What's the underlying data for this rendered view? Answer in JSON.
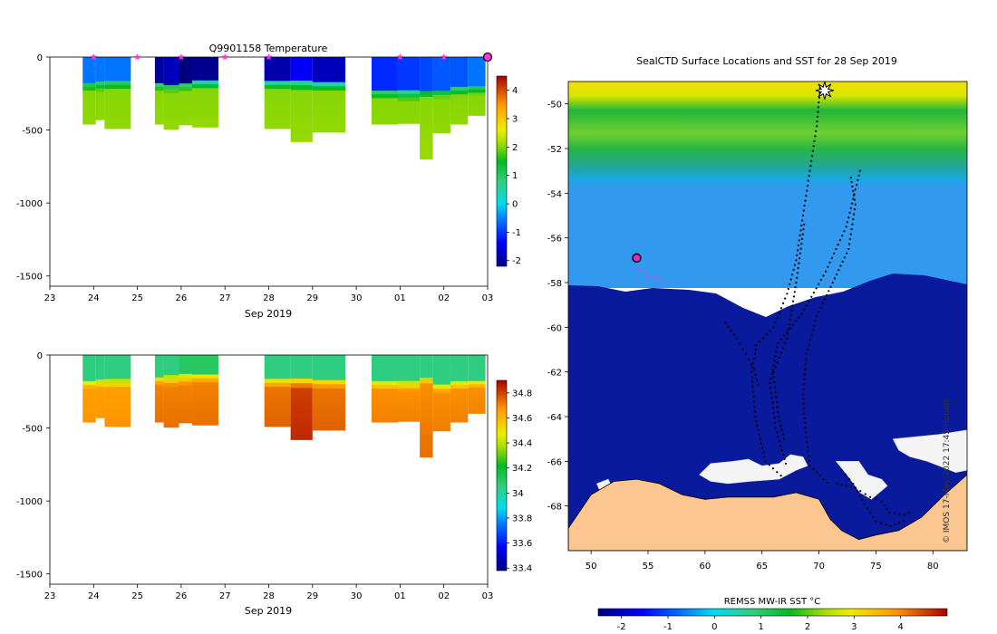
{
  "chart_data": [
    {
      "type": "heatmap",
      "id": "temperature-section",
      "title": "Q9901158  Temperature",
      "xlabel": "Sep 2019",
      "ylabel": "",
      "x_ticks": [
        "23",
        "24",
        "25",
        "26",
        "27",
        "28",
        "29",
        "30",
        "01",
        "02",
        "03"
      ],
      "x_range_days": [
        0,
        10
      ],
      "y_ticks": [
        0,
        -500,
        -1000,
        -1500
      ],
      "y_range": [
        -1570,
        0
      ],
      "colorbar": {
        "ticks": [
          4,
          3,
          2,
          1,
          0,
          -1,
          -2
        ],
        "range": [
          -2.2,
          4.5
        ]
      },
      "profile_markers_day": [
        1.0,
        2.0,
        3.0,
        4.0,
        5.0,
        8.0,
        9.0
      ],
      "last_marker_day": 10.0,
      "profiles": [
        {
          "t0": 0.75,
          "t1": 1.05,
          "bottom": -460,
          "surf": -0.6,
          "mix": -180,
          "deep": 2.0
        },
        {
          "t0": 1.05,
          "t1": 1.25,
          "bottom": -430,
          "surf": -0.6,
          "mix": -175,
          "deep": 2.0
        },
        {
          "t0": 1.25,
          "t1": 1.85,
          "bottom": -490,
          "surf": -0.6,
          "mix": -170,
          "deep": 2.0
        },
        {
          "t0": 2.4,
          "t1": 2.6,
          "bottom": -460,
          "surf": -2.0,
          "mix": -170,
          "deep": 2.0
        },
        {
          "t0": 2.6,
          "t1": 2.95,
          "bottom": -495,
          "surf": -1.8,
          "mix": -180,
          "deep": 2.0
        },
        {
          "t0": 2.95,
          "t1": 3.25,
          "bottom": -465,
          "surf": -2.2,
          "mix": -170,
          "deep": 2.0
        },
        {
          "t0": 3.25,
          "t1": 3.85,
          "bottom": -480,
          "surf": -2.1,
          "mix": -160,
          "deep": 2.0
        },
        {
          "t0": 4.9,
          "t1": 5.5,
          "bottom": -490,
          "surf": -1.9,
          "mix": -165,
          "deep": 2.0
        },
        {
          "t0": 5.5,
          "t1": 6.0,
          "bottom": -580,
          "surf": -1.4,
          "mix": -170,
          "deep": 2.0
        },
        {
          "t0": 6.0,
          "t1": 6.75,
          "bottom": -515,
          "surf": -1.8,
          "mix": -175,
          "deep": 2.0
        },
        {
          "t0": 7.35,
          "t1": 7.95,
          "bottom": -460,
          "surf": -1.1,
          "mix": -230,
          "deep": 2.0
        },
        {
          "t0": 7.95,
          "t1": 8.45,
          "bottom": -455,
          "surf": -1.0,
          "mix": -240,
          "deep": 2.0
        },
        {
          "t0": 8.45,
          "t1": 8.75,
          "bottom": -700,
          "surf": -0.9,
          "mix": -220,
          "deep": 2.0
        },
        {
          "t0": 8.75,
          "t1": 9.15,
          "bottom": -520,
          "surf": -0.8,
          "mix": -220,
          "deep": 2.0
        },
        {
          "t0": 9.15,
          "t1": 9.55,
          "bottom": -460,
          "surf": -0.8,
          "mix": -210,
          "deep": 2.0
        },
        {
          "t0": 9.55,
          "t1": 9.95,
          "bottom": -400,
          "surf": -0.6,
          "mix": -200,
          "deep": 2.0
        }
      ]
    },
    {
      "type": "heatmap",
      "id": "salinity-section",
      "title": "",
      "xlabel": "Sep 2019",
      "ylabel": "",
      "x_ticks": [
        "23",
        "24",
        "25",
        "26",
        "27",
        "28",
        "29",
        "30",
        "01",
        "02",
        "03"
      ],
      "x_range_days": [
        0,
        10
      ],
      "y_ticks": [
        0,
        -500,
        -1000,
        -1500
      ],
      "y_range": [
        -1570,
        0
      ],
      "colorbar": {
        "ticks": [
          34.8,
          34.6,
          34.4,
          34.2,
          34,
          33.8,
          33.6,
          33.4
        ],
        "range": [
          33.38,
          34.9
        ]
      },
      "profiles": [
        {
          "t0": 0.75,
          "t1": 1.05,
          "bottom": -460,
          "surf": 34.05,
          "mix": -170,
          "deep": 34.65
        },
        {
          "t0": 1.05,
          "t1": 1.25,
          "bottom": -430,
          "surf": 34.05,
          "mix": -170,
          "deep": 34.65
        },
        {
          "t0": 1.25,
          "t1": 1.85,
          "bottom": -490,
          "surf": 34.05,
          "mix": -170,
          "deep": 34.65
        },
        {
          "t0": 2.4,
          "t1": 2.6,
          "bottom": -460,
          "surf": 34.05,
          "mix": -145,
          "deep": 34.7
        },
        {
          "t0": 2.6,
          "t1": 2.95,
          "bottom": -495,
          "surf": 34.05,
          "mix": -150,
          "deep": 34.7
        },
        {
          "t0": 2.95,
          "t1": 3.25,
          "bottom": -465,
          "surf": 34.1,
          "mix": -140,
          "deep": 34.7
        },
        {
          "t0": 3.25,
          "t1": 3.85,
          "bottom": -480,
          "surf": 34.1,
          "mix": -130,
          "deep": 34.7
        },
        {
          "t0": 4.9,
          "t1": 5.5,
          "bottom": -490,
          "surf": 34.05,
          "mix": -160,
          "deep": 34.72
        },
        {
          "t0": 5.5,
          "t1": 6.0,
          "bottom": -580,
          "surf": 34.05,
          "mix": -165,
          "deep": 34.8
        },
        {
          "t0": 6.0,
          "t1": 6.75,
          "bottom": -515,
          "surf": 34.05,
          "mix": -165,
          "deep": 34.72
        },
        {
          "t0": 7.35,
          "t1": 7.95,
          "bottom": -460,
          "surf": 34.05,
          "mix": -180,
          "deep": 34.68
        },
        {
          "t0": 7.95,
          "t1": 8.45,
          "bottom": -455,
          "surf": 34.05,
          "mix": -185,
          "deep": 34.68
        },
        {
          "t0": 8.45,
          "t1": 8.75,
          "bottom": -700,
          "surf": 34.05,
          "mix": -140,
          "deep": 34.68
        },
        {
          "t0": 8.75,
          "t1": 9.15,
          "bottom": -520,
          "surf": 34.05,
          "mix": -195,
          "deep": 34.68
        },
        {
          "t0": 9.15,
          "t1": 9.55,
          "bottom": -460,
          "surf": 34.05,
          "mix": -180,
          "deep": 34.68
        },
        {
          "t0": 9.55,
          "t1": 9.95,
          "bottom": -400,
          "surf": 34.05,
          "mix": -170,
          "deep": 34.68
        }
      ]
    },
    {
      "type": "heatmap",
      "id": "sst-map",
      "title": "SealCTD Surface Locations and SST for 28 Sep 2019",
      "xlabel": "",
      "ylabel": "",
      "x_ticks": [
        50,
        55,
        60,
        65,
        70,
        75,
        80
      ],
      "x_range": [
        48,
        83
      ],
      "y_ticks": [
        -50,
        -52,
        -54,
        -56,
        -58,
        -60,
        -62,
        -64,
        -66,
        -68
      ],
      "y_range": [
        -70,
        -49
      ],
      "colorbar": {
        "label": "REMSS MW-IR SST °C",
        "ticks": [
          -2,
          -1,
          0,
          1,
          2,
          3,
          4
        ],
        "range": [
          -2.5,
          5
        ]
      },
      "current_position": {
        "lon": 54.0,
        "lat": -56.9
      },
      "coast_lat_profile": [
        {
          "lon": 48.0,
          "lat": -69.0
        },
        {
          "lon": 50.0,
          "lat": -67.5
        },
        {
          "lon": 52.0,
          "lat": -66.9
        },
        {
          "lon": 54.0,
          "lat": -66.8
        },
        {
          "lon": 56.0,
          "lat": -67.0
        },
        {
          "lon": 58.0,
          "lat": -67.5
        },
        {
          "lon": 60.0,
          "lat": -67.7
        },
        {
          "lon": 62.0,
          "lat": -67.6
        },
        {
          "lon": 64.0,
          "lat": -67.6
        },
        {
          "lon": 66.0,
          "lat": -67.6
        },
        {
          "lon": 68.0,
          "lat": -67.4
        },
        {
          "lon": 70.0,
          "lat": -67.7
        },
        {
          "lon": 71.0,
          "lat": -68.6
        },
        {
          "lon": 72.0,
          "lat": -69.1
        },
        {
          "lon": 73.5,
          "lat": -69.5
        },
        {
          "lon": 75.0,
          "lat": -69.3
        },
        {
          "lon": 77.0,
          "lat": -69.1
        },
        {
          "lon": 79.0,
          "lat": -68.5
        },
        {
          "lon": 81.0,
          "lat": -67.5
        },
        {
          "lon": 83.0,
          "lat": -66.6
        }
      ],
      "track_segments": [
        [
          [
            70.1,
            -49.3
          ],
          [
            69.8,
            -51.0
          ],
          [
            69.2,
            -53.0
          ],
          [
            68.6,
            -55.0
          ],
          [
            68.0,
            -57.0
          ],
          [
            67.2,
            -58.5
          ],
          [
            66.0,
            -60.0
          ],
          [
            64.5,
            -60.8
          ],
          [
            64.1,
            -62.0
          ],
          [
            64.4,
            -64.0
          ],
          [
            65.3,
            -66.0
          ],
          [
            67.0,
            -66.8
          ]
        ],
        [
          [
            72.8,
            -53.3
          ],
          [
            73.2,
            -54.5
          ],
          [
            72.6,
            -56.5
          ],
          [
            71.2,
            -58.0
          ],
          [
            69.8,
            -59.5
          ],
          [
            68.9,
            -61.2
          ],
          [
            68.6,
            -63.0
          ],
          [
            68.8,
            -64.5
          ],
          [
            69.2,
            -66.2
          ],
          [
            71.0,
            -67.1
          ]
        ],
        [
          [
            73.6,
            -53.0
          ],
          [
            72.4,
            -55.5
          ],
          [
            70.6,
            -57.5
          ],
          [
            68.5,
            -59.4
          ],
          [
            66.4,
            -60.7
          ],
          [
            65.7,
            -62.5
          ],
          [
            66.2,
            -64.5
          ],
          [
            67.2,
            -66.3
          ]
        ],
        [
          [
            68.7,
            -55.4
          ],
          [
            68.0,
            -58.0
          ],
          [
            67.2,
            -60.5
          ],
          [
            66.0,
            -62.0
          ],
          [
            66.4,
            -63.8
          ],
          [
            67.0,
            -65.2
          ]
        ],
        [
          [
            71.6,
            -67.0
          ],
          [
            73.2,
            -67.2
          ],
          [
            74.5,
            -67.6
          ],
          [
            75.5,
            -67.8
          ],
          [
            76.2,
            -68.3
          ],
          [
            77.5,
            -68.4
          ],
          [
            78.3,
            -68.2
          ]
        ],
        [
          [
            72.0,
            -66.4
          ],
          [
            73.0,
            -67.0
          ],
          [
            74.0,
            -67.9
          ],
          [
            75.0,
            -68.7
          ],
          [
            76.3,
            -68.9
          ],
          [
            77.8,
            -68.6
          ]
        ],
        [
          [
            61.8,
            -59.8
          ],
          [
            62.8,
            -60.5
          ],
          [
            63.6,
            -61.2
          ],
          [
            64.3,
            -61.9
          ],
          [
            64.8,
            -62.8
          ]
        ],
        [
          [
            54.2,
            -57.4
          ],
          [
            55.0,
            -57.7
          ],
          [
            55.8,
            -57.8
          ],
          [
            56.5,
            -58.0
          ]
        ]
      ],
      "sea_ice_patches": [
        [
          [
            59.5,
            -66.6
          ],
          [
            60.5,
            -66.1
          ],
          [
            62.5,
            -66.0
          ],
          [
            63.8,
            -65.9
          ],
          [
            65.0,
            -66.2
          ],
          [
            66.5,
            -66.1
          ],
          [
            67.5,
            -65.7
          ],
          [
            68.6,
            -65.8
          ],
          [
            69.0,
            -66.2
          ],
          [
            68.0,
            -66.4
          ],
          [
            66.5,
            -66.8
          ],
          [
            64.0,
            -66.9
          ],
          [
            62.0,
            -67.0
          ],
          [
            60.5,
            -66.9
          ]
        ],
        [
          [
            71.5,
            -66.0
          ],
          [
            73.5,
            -66.0
          ],
          [
            74.3,
            -66.6
          ],
          [
            75.5,
            -66.8
          ],
          [
            76.0,
            -67.1
          ],
          [
            74.6,
            -67.7
          ],
          [
            73.6,
            -67.4
          ],
          [
            72.6,
            -66.7
          ]
        ],
        [
          [
            76.5,
            -65.0
          ],
          [
            78.5,
            -64.9
          ],
          [
            80.5,
            -64.8
          ],
          [
            83.0,
            -64.6
          ],
          [
            83.0,
            -66.4
          ],
          [
            82.0,
            -66.5
          ],
          [
            81.0,
            -66.3
          ],
          [
            79.5,
            -66.0
          ],
          [
            78.0,
            -65.8
          ],
          [
            77.0,
            -65.5
          ]
        ],
        [
          [
            50.5,
            -67.0
          ],
          [
            51.5,
            -66.8
          ],
          [
            52.0,
            -67.3
          ],
          [
            51.0,
            -67.6
          ]
        ]
      ],
      "ship_symbol": {
        "lon": 70.5,
        "lat": -49.4
      }
    }
  ],
  "credit": "© IMOS 17-May-2022 17:45 Hobart"
}
